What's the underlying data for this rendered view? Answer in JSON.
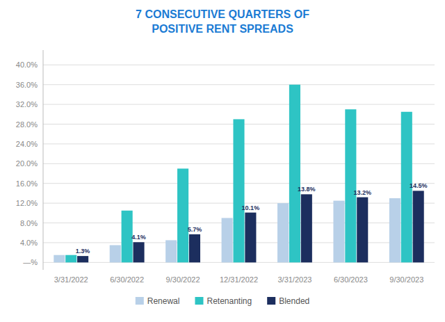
{
  "chart_data": {
    "type": "bar",
    "title": "7 CONSECUTIVE QUARTERS OF\nPOSITIVE RENT SPREADS",
    "categories": [
      "3/31/2022",
      "6/30/2022",
      "9/30/2022",
      "12/31/2022",
      "3/31/2023",
      "6/30/2023",
      "9/30/2023"
    ],
    "series": [
      {
        "name": "Renewal",
        "color": "#b8d0e8",
        "values": [
          1.5,
          3.5,
          4.5,
          9.0,
          12.0,
          12.5,
          13.0
        ]
      },
      {
        "name": "Retenanting",
        "color": "#2ec4c4",
        "values": [
          1.5,
          10.5,
          19.0,
          29.0,
          36.0,
          31.0,
          30.5
        ]
      },
      {
        "name": "Blended",
        "color": "#1c2e5e",
        "values": [
          1.3,
          4.1,
          5.7,
          10.1,
          13.8,
          13.2,
          14.5
        ],
        "value_labels": [
          "1.3%",
          "4.1%",
          "5.7%",
          "10.1%",
          "13.8%",
          "13.2%",
          "14.5%"
        ],
        "data_labels": true
      }
    ],
    "ylim": [
      -1.5,
      43
    ],
    "yticks": [
      {
        "value": 0,
        "label": "—%"
      },
      {
        "value": 4,
        "label": "4.0%"
      },
      {
        "value": 8,
        "label": "8.0%"
      },
      {
        "value": 12,
        "label": "12.0%"
      },
      {
        "value": 16,
        "label": "16.0%"
      },
      {
        "value": 20,
        "label": "20.0%"
      },
      {
        "value": 24,
        "label": "24.0%"
      },
      {
        "value": 28,
        "label": "28.0%"
      },
      {
        "value": 32,
        "label": "32.0%"
      },
      {
        "value": 36,
        "label": "36.0%"
      },
      {
        "value": 40,
        "label": "40.0%"
      }
    ],
    "grid": true,
    "legend": "bottom"
  }
}
